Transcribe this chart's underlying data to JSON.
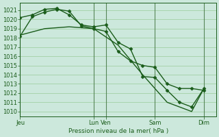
{
  "xlabel": "Pression niveau de la mer( hPa )",
  "bg_color": "#cce8dc",
  "grid_color": "#99cc99",
  "line_color": "#1a5c1a",
  "vline_color": "#336633",
  "ylim": [
    1009.5,
    1021.8
  ],
  "xlim": [
    0,
    96
  ],
  "yticks": [
    1010,
    1011,
    1012,
    1013,
    1014,
    1015,
    1016,
    1017,
    1018,
    1019,
    1020,
    1021
  ],
  "x_tick_positions": [
    0,
    36,
    42,
    66,
    90
  ],
  "x_tick_labels": [
    "Jeu",
    "Lun",
    "Ven",
    "Sam",
    "Dim"
  ],
  "vlines": [
    0,
    36,
    42,
    66,
    90
  ],
  "series1_x": [
    0,
    6,
    12,
    18,
    24,
    30,
    36,
    42,
    48,
    54,
    60,
    66,
    72,
    78,
    84,
    90
  ],
  "series1_y": [
    1018.2,
    1020.3,
    1020.8,
    1021.1,
    1020.9,
    1019.3,
    1019.0,
    1018.7,
    1016.5,
    1015.5,
    1015.0,
    1014.8,
    1013.0,
    1012.5,
    1012.5,
    1012.3
  ],
  "series2_x": [
    0,
    6,
    12,
    18,
    24,
    30,
    36,
    42,
    48,
    54,
    60,
    66,
    72,
    78,
    84,
    90
  ],
  "series2_y": [
    1020.2,
    1020.5,
    1021.1,
    1021.2,
    1020.5,
    1019.4,
    1019.2,
    1019.4,
    1017.5,
    1016.8,
    1013.8,
    1013.7,
    1012.3,
    1011.0,
    1010.5,
    1012.5
  ],
  "series3_x": [
    0,
    12,
    24,
    36,
    48,
    60,
    72,
    84,
    90
  ],
  "series3_y": [
    1018.3,
    1019.0,
    1019.2,
    1019.0,
    1017.2,
    1014.0,
    1011.0,
    1010.0,
    1012.5
  ],
  "marker": "D",
  "marker_size": 2.5,
  "line_width": 1.0
}
